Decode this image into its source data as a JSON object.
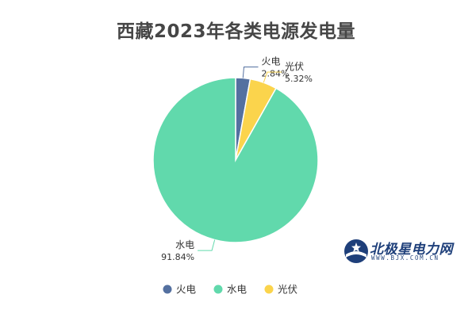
{
  "chart_data": {
    "type": "pie",
    "title": "西藏2023年各类电源发电量",
    "start_angle_deg": 90,
    "direction": "clockwise",
    "slices": [
      {
        "name": "火电",
        "value": 2.84,
        "label": "2.84%",
        "color": "#5470a0"
      },
      {
        "name": "光伏",
        "value": 5.32,
        "label": "5.32%",
        "color": "#fbd44c"
      },
      {
        "name": "水电",
        "value": 91.84,
        "label": "91.84%",
        "color": "#61d9ac"
      }
    ],
    "legend": {
      "position": "bottom",
      "items": [
        {
          "name": "火电",
          "color": "#5470a0"
        },
        {
          "name": "水电",
          "color": "#61d9ac"
        },
        {
          "name": "光伏",
          "color": "#fbd44c"
        }
      ]
    }
  },
  "watermark": {
    "brand": "北极星电力网",
    "url": "WWW.BJX.COM.CN"
  }
}
